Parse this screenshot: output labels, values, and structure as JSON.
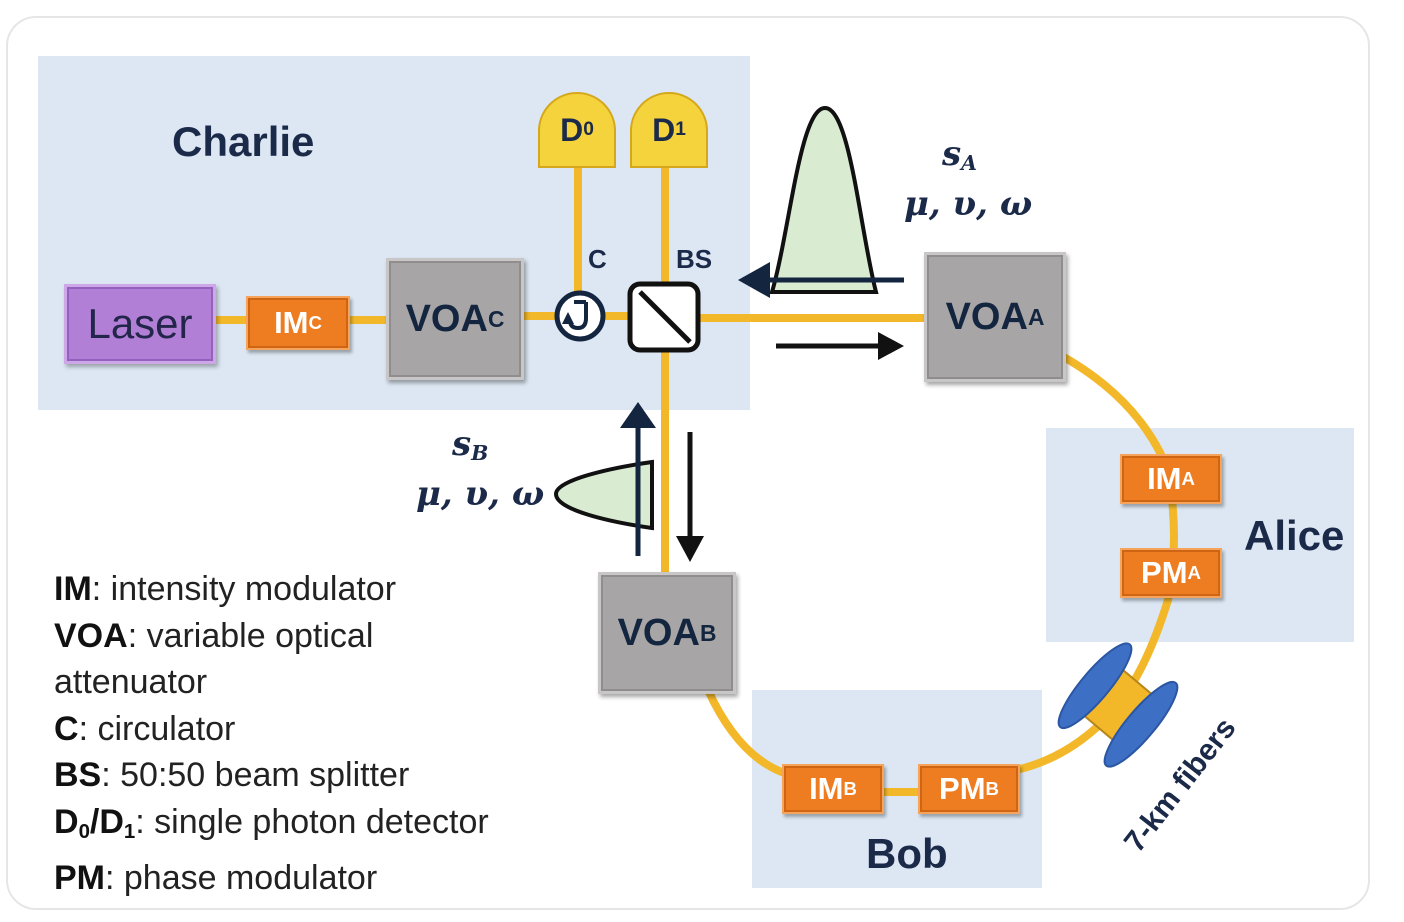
{
  "parties": {
    "charlie": "Charlie",
    "alice": "Alice",
    "bob": "Bob"
  },
  "components": {
    "laser": "Laser",
    "im_c": {
      "main": "IM",
      "sub": "C"
    },
    "voa_c": {
      "main": "VOA",
      "sub": "C"
    },
    "voa_a": {
      "main": "VOA",
      "sub": "A"
    },
    "voa_b": {
      "main": "VOA",
      "sub": "B"
    },
    "im_a": {
      "main": "IM",
      "sub": "A"
    },
    "pm_a": {
      "main": "PM",
      "sub": "A"
    },
    "im_b": {
      "main": "IM",
      "sub": "B"
    },
    "pm_b": {
      "main": "PM",
      "sub": "B"
    },
    "d0": {
      "main": "D",
      "sub": "0"
    },
    "d1": {
      "main": "D",
      "sub": "1"
    },
    "circulator_label": "C",
    "bs_label": "BS"
  },
  "signals": {
    "a": {
      "symbol": "s",
      "sub": "A",
      "params": "μ, υ, ω"
    },
    "b": {
      "symbol": "s",
      "sub": "B",
      "params": "μ, υ, ω"
    }
  },
  "fiber_label": "7-km fibers",
  "legend": [
    {
      "term": "IM",
      "desc": ": intensity modulator"
    },
    {
      "term": "VOA",
      "desc": ": variable optical"
    },
    {
      "term": "",
      "desc": "attenuator"
    },
    {
      "term": "C",
      "desc": ": circulator"
    },
    {
      "term": "BS",
      "desc": ": 50:50 beam splitter"
    },
    {
      "term": "D0/D1",
      "desc": ": single photon detector"
    },
    {
      "term": "PM",
      "desc": ": phase modulator"
    }
  ],
  "colors": {
    "region": "#dce7f3",
    "fiber": "#f2b82a",
    "modulator": "#ee7d22",
    "voa": "#a7a5a6",
    "laser": "#b27fd6",
    "detector": "#f5d33c",
    "pulse": "#d9ecd2",
    "spool": "#3d6fc4"
  }
}
